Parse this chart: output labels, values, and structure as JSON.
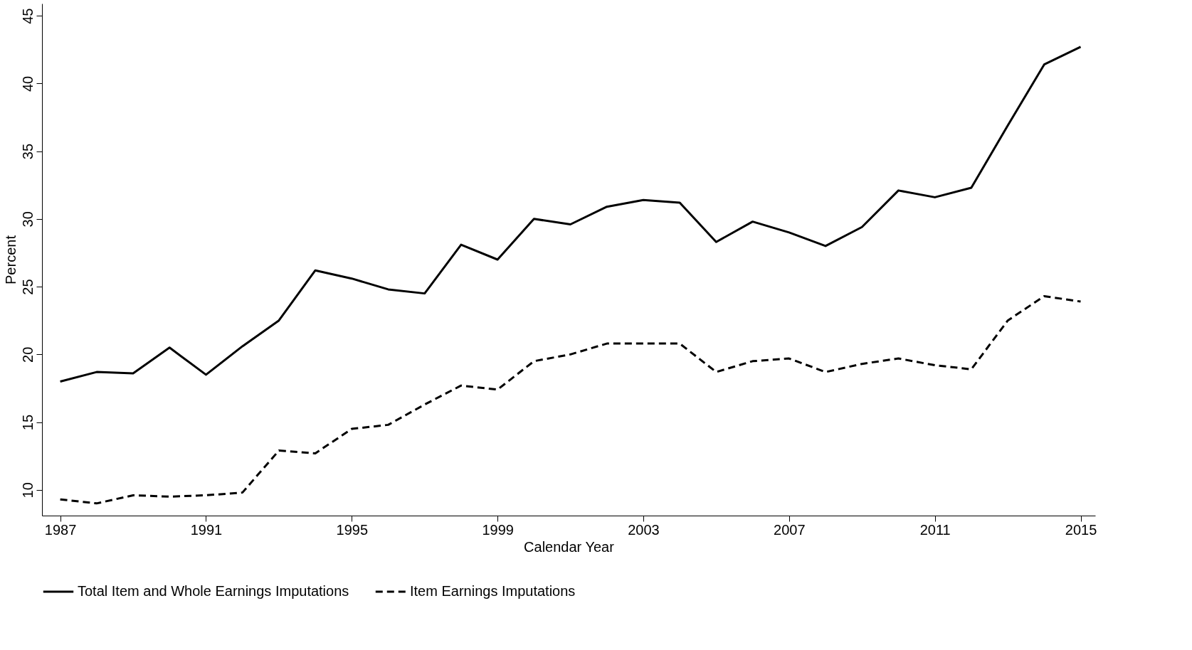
{
  "chart_data": {
    "type": "line",
    "xlabel": "Calendar Year",
    "ylabel": "Percent",
    "x": [
      1987,
      1988,
      1989,
      1990,
      1991,
      1992,
      1993,
      1994,
      1995,
      1996,
      1997,
      1998,
      1999,
      2000,
      2001,
      2002,
      2003,
      2004,
      2005,
      2006,
      2007,
      2008,
      2009,
      2010,
      2011,
      2012,
      2013,
      2014,
      2015
    ],
    "series": [
      {
        "name": "Total Item and Whole Earnings Imputations",
        "color": "#000000",
        "line_style": "solid",
        "values": [
          18.0,
          18.7,
          18.6,
          20.5,
          18.5,
          20.6,
          22.5,
          26.2,
          25.6,
          24.8,
          24.5,
          28.1,
          27.0,
          30.0,
          29.6,
          30.9,
          31.4,
          31.2,
          28.3,
          29.8,
          29.0,
          28.0,
          29.4,
          32.1,
          31.6,
          32.3,
          36.9,
          41.4,
          42.7
        ]
      },
      {
        "name": "Item Earnings Imputations",
        "color": "#000000",
        "line_style": "dashed",
        "values": [
          9.3,
          9.0,
          9.6,
          9.5,
          9.6,
          9.8,
          12.9,
          12.7,
          14.5,
          14.8,
          16.3,
          17.7,
          17.4,
          19.5,
          20.0,
          20.8,
          20.8,
          20.8,
          18.7,
          19.5,
          19.7,
          18.7,
          19.3,
          19.7,
          19.2,
          18.9,
          22.5,
          24.3,
          23.9
        ]
      }
    ],
    "xlim": [
      1986.5,
      2015.4
    ],
    "xticks": [
      1987,
      1991,
      1995,
      1999,
      2003,
      2007,
      2011,
      2015
    ],
    "ylim": [
      8.1,
      45.9
    ],
    "yticks": [
      10,
      15,
      20,
      25,
      30,
      35,
      40,
      45
    ],
    "grid": false,
    "legend": "bottom",
    "marker": "none"
  }
}
